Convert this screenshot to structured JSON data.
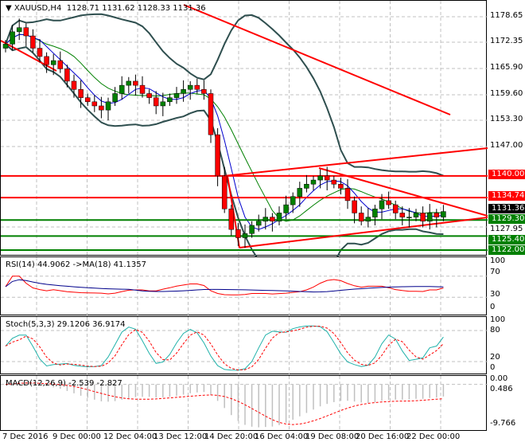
{
  "header": {
    "symbol": "XAUUSD,H4",
    "ohlc": "1128.71 1131.62 1128.33 1131.36"
  },
  "price_axis": [
    "1178.65",
    "1172.35",
    "1165.90",
    "1159.60",
    "1153.30",
    "1147.00",
    "1127.95"
  ],
  "levels": [
    {
      "label": "1140.00",
      "value": 1140.0,
      "color": "#ff0000"
    },
    {
      "label": "1134.74",
      "value": 1134.74,
      "color": "#ff0000"
    },
    {
      "label": "1125.40",
      "value": 1125.4,
      "color": "#008000"
    },
    {
      "label": "1122.00",
      "value": 1122.0,
      "color": "#008000"
    }
  ],
  "current_price": {
    "label": "1131.36",
    "value": 1131.36
  },
  "support_label": {
    "label": "1129.30",
    "value": 1129.3
  },
  "rsi": {
    "title": "RSI(14) 44.9062  ->MA(18) 41.1357",
    "axis": [
      "70",
      "30",
      "0"
    ],
    "top": "100"
  },
  "stoch": {
    "title": "Stoch(5,3,3) 29.1206 36.9174",
    "axis": [
      "100",
      "80",
      "20",
      "0"
    ]
  },
  "macd": {
    "title": "MACD(12,26,9) -2.539 -2.827",
    "axis": [
      "0.486",
      "0.00",
      "-9.766"
    ]
  },
  "time_axis": [
    "7 Dec 2016",
    "9 Dec 00:00",
    "12 Dec 04:00",
    "13 Dec 12:00",
    "14 Dec 20:00",
    "16 Dec 04:00",
    "19 Dec 08:00",
    "20 Dec 16:00",
    "22 Dec 00:00"
  ],
  "chart_data": {
    "type": "candlestick",
    "closes": [
      1172,
      1175,
      1176,
      1174,
      1171,
      1169,
      1167,
      1168,
      1166,
      1163,
      1161,
      1159,
      1158,
      1157,
      1156,
      1158,
      1160,
      1162,
      1163,
      1162,
      1160,
      1159,
      1157,
      1158,
      1159,
      1160,
      1161,
      1162,
      1161,
      1160,
      1150,
      1140,
      1132,
      1127,
      1125,
      1126,
      1128,
      1129,
      1130,
      1129,
      1131,
      1133,
      1135,
      1137,
      1138,
      1139,
      1140,
      1139,
      1138,
      1137,
      1134,
      1131,
      1129,
      1130,
      1132,
      1134,
      1133,
      1131,
      1130,
      1130,
      1131,
      1129,
      1131,
      1130,
      1131.36
    ],
    "ylim": [
      1119,
      1182
    ]
  }
}
